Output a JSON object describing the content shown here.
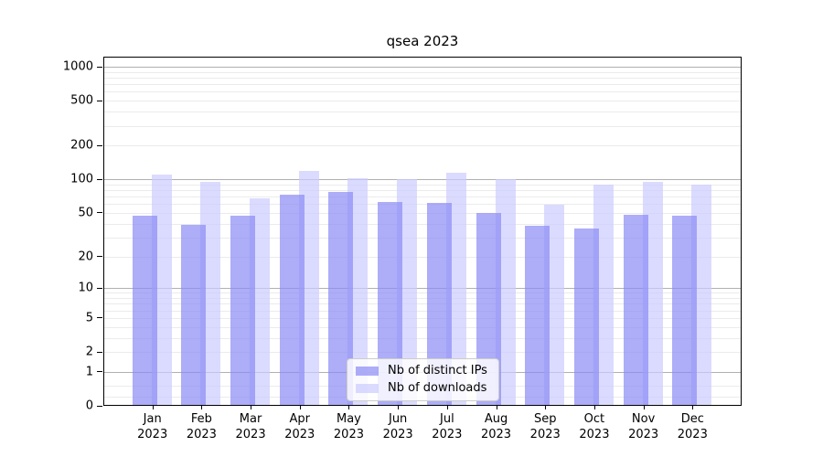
{
  "figure": {
    "background": "#ffffff"
  },
  "chart_data": {
    "type": "bar",
    "title": "qsea 2023",
    "categories": [
      "Jan",
      "Feb",
      "Mar",
      "Apr",
      "May",
      "Jun",
      "Jul",
      "Aug",
      "Sep",
      "Oct",
      "Nov",
      "Dec"
    ],
    "x_tick_year_label": "2023",
    "series": [
      {
        "name": "Nb of distinct IPs",
        "color": "#8a8af5",
        "fill_opacity": 0.7,
        "values": [
          47,
          39,
          47,
          73,
          77,
          63,
          62,
          50,
          38,
          36,
          48,
          47
        ]
      },
      {
        "name": "Nb of downloads",
        "color": "#ccccff",
        "fill_opacity": 0.7,
        "values": [
          110,
          95,
          68,
          119,
          103,
          100,
          114,
          100,
          59,
          89,
          94,
          90
        ]
      }
    ],
    "y_scale": "log1p",
    "ylim": [
      0,
      1230
    ],
    "y_ticks": [
      1000,
      500,
      200,
      100,
      50,
      20,
      10,
      5,
      2,
      1,
      0
    ],
    "major_gridlines": [
      1,
      10,
      100,
      1000
    ],
    "minor_gridlines": [
      0.2,
      0.5,
      2,
      3,
      4,
      5,
      6,
      7,
      8,
      9,
      20,
      30,
      40,
      50,
      60,
      70,
      80,
      90,
      200,
      300,
      400,
      500,
      600,
      700,
      800,
      900
    ],
    "grid": true,
    "legend_position": "bottom-center",
    "colors": {
      "major_grid": "#b0b0b0",
      "minor_grid": "#ebebeb",
      "spine": "#000000",
      "text": "#000000"
    }
  }
}
